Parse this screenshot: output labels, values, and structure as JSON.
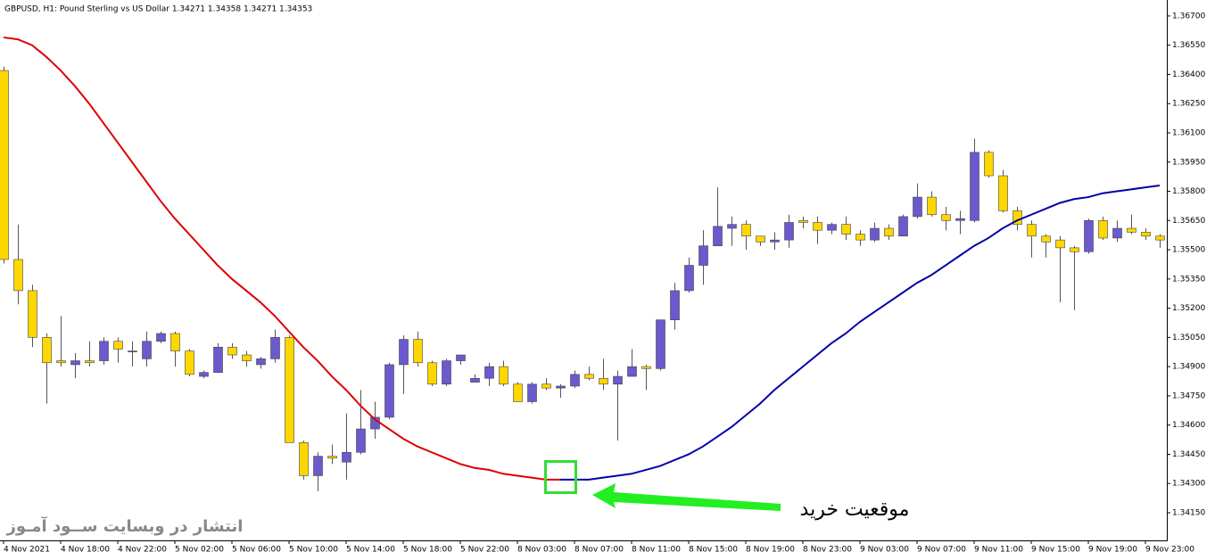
{
  "chart_data": {
    "type": "candlestick",
    "title": "GBPUSD, H1:  Pound Sterling vs US Dollar  1.34271 1.34358 1.34271 1.34353",
    "watermark": "انتشار در وبسایت  ســود آمـوز",
    "annotation": "موقعیت خرید",
    "up_color": "#6a5acd",
    "down_color": "#ffd700",
    "categories": [
      "4 Nov 2021",
      null,
      null,
      null,
      "4 Nov 18:00",
      null,
      null,
      null,
      "4 Nov 22:00",
      null,
      null,
      null,
      "5 Nov 02:00",
      null,
      null,
      null,
      "5 Nov 06:00",
      null,
      null,
      null,
      "5 Nov 10:00",
      null,
      null,
      null,
      "5 Nov 14:00",
      null,
      null,
      null,
      "5 Nov 18:00",
      null,
      null,
      null,
      "5 Nov 22:00",
      null,
      null,
      null,
      "8 Nov 03:00",
      null,
      null,
      null,
      "8 Nov 07:00",
      null,
      null,
      null,
      "8 Nov 11:00",
      null,
      null,
      null,
      "8 Nov 15:00",
      null,
      null,
      null,
      "8 Nov 19:00",
      null,
      null,
      null,
      "8 Nov 23:00",
      null,
      null,
      null,
      "9 Nov 03:00",
      null,
      null,
      null,
      "9 Nov 07:00",
      null,
      null,
      null,
      "9 Nov 11:00",
      null,
      null,
      null,
      "9 Nov 15:00",
      null,
      null,
      null,
      "9 Nov 19:00",
      null,
      null,
      null,
      "9 Nov 23:00",
      null
    ],
    "open": [
      1.3642,
      1.3545,
      1.3529,
      1.3505,
      1.3493,
      1.3491,
      1.3493,
      1.3493,
      1.3503,
      1.3498,
      1.3494,
      1.3503,
      1.3507,
      1.3498,
      1.3485,
      1.3487,
      1.35,
      1.3496,
      1.3491,
      1.3494,
      1.3505,
      1.3451,
      1.3434,
      1.3444,
      1.3441,
      1.3446,
      1.3458,
      1.3464,
      1.3491,
      1.3504,
      1.3492,
      1.3481,
      1.3493,
      1.3482,
      1.3484,
      1.349,
      1.3481,
      1.3472,
      1.3481,
      1.3479,
      1.348,
      1.3486,
      1.3484,
      1.3481,
      1.3485,
      1.349,
      1.3489,
      1.3514,
      1.3529,
      1.3542,
      1.3552,
      1.3561,
      1.3563,
      1.3557,
      1.3554,
      1.3555,
      1.3565,
      1.3564,
      1.356,
      1.3563,
      1.3558,
      1.3555,
      1.3561,
      1.3557,
      1.3567,
      1.3577,
      1.3568,
      1.3565,
      1.3565,
      1.36,
      1.3588,
      1.357,
      1.3563,
      1.3557,
      1.3555,
      1.3551,
      1.3549,
      1.3565,
      1.3556,
      1.3561,
      1.3559,
      1.3557
    ],
    "high": [
      1.3644,
      1.3563,
      1.3532,
      1.3507,
      1.3516,
      1.3497,
      1.3503,
      1.3505,
      1.3505,
      1.3503,
      1.3508,
      1.3508,
      1.3508,
      1.3499,
      1.3488,
      1.3502,
      1.3502,
      1.3498,
      1.3495,
      1.3509,
      1.3506,
      1.3452,
      1.3446,
      1.345,
      1.3466,
      1.3478,
      1.3472,
      1.3492,
      1.3506,
      1.3508,
      1.3493,
      1.3494,
      1.3496,
      1.3486,
      1.3492,
      1.3493,
      1.3482,
      1.3482,
      1.3484,
      1.3481,
      1.3488,
      1.349,
      1.3494,
      1.3488,
      1.3499,
      1.3491,
      1.3514,
      1.3533,
      1.3546,
      1.356,
      1.3582,
      1.3567,
      1.3565,
      1.3557,
      1.3559,
      1.3568,
      1.3567,
      1.3567,
      1.3564,
      1.3567,
      1.356,
      1.3564,
      1.3563,
      1.3568,
      1.3584,
      1.358,
      1.3572,
      1.357,
      1.3607,
      1.3601,
      1.3591,
      1.3572,
      1.3565,
      1.3558,
      1.3557,
      1.3552,
      1.3566,
      1.3567,
      1.3565,
      1.3568,
      1.3561,
      1.3558
    ],
    "low": [
      1.3543,
      1.3522,
      1.35,
      1.3471,
      1.349,
      1.3484,
      1.349,
      1.3491,
      1.3492,
      1.349,
      1.349,
      1.3502,
      1.349,
      1.3485,
      1.3484,
      1.3487,
      1.3494,
      1.349,
      1.3489,
      1.3492,
      1.3451,
      1.3432,
      1.3426,
      1.344,
      1.3432,
      1.3445,
      1.3453,
      1.3463,
      1.3476,
      1.349,
      1.348,
      1.348,
      1.3491,
      1.3482,
      1.348,
      1.348,
      1.3472,
      1.3471,
      1.3478,
      1.3474,
      1.3479,
      1.3483,
      1.3478,
      1.3452,
      1.3485,
      1.3478,
      1.3488,
      1.3509,
      1.3528,
      1.3532,
      1.3552,
      1.3552,
      1.355,
      1.3552,
      1.355,
      1.3551,
      1.3561,
      1.3553,
      1.3558,
      1.3555,
      1.3552,
      1.3554,
      1.3555,
      1.3557,
      1.3566,
      1.3567,
      1.356,
      1.3558,
      1.3564,
      1.3587,
      1.3569,
      1.356,
      1.3546,
      1.3546,
      1.3523,
      1.3519,
      1.3548,
      1.3555,
      1.3554,
      1.3558,
      1.3555,
      1.3551
    ],
    "close": [
      1.3545,
      1.3529,
      1.3505,
      1.3492,
      1.3492,
      1.3493,
      1.3492,
      1.3503,
      1.3499,
      1.3498,
      1.3503,
      1.3507,
      1.3498,
      1.3486,
      1.3487,
      1.35,
      1.3496,
      1.3493,
      1.3494,
      1.3505,
      1.3451,
      1.3434,
      1.3444,
      1.3443,
      1.3446,
      1.3458,
      1.3464,
      1.3491,
      1.3504,
      1.3492,
      1.3481,
      1.3493,
      1.3496,
      1.3484,
      1.349,
      1.3481,
      1.3472,
      1.3481,
      1.3479,
      1.348,
      1.3486,
      1.3484,
      1.3481,
      1.3485,
      1.349,
      1.3489,
      1.3514,
      1.3529,
      1.3542,
      1.3552,
      1.3562,
      1.3563,
      1.3557,
      1.3554,
      1.3555,
      1.3564,
      1.3564,
      1.356,
      1.3563,
      1.3558,
      1.3555,
      1.3561,
      1.3557,
      1.3567,
      1.3577,
      1.3568,
      1.3565,
      1.3566,
      1.36,
      1.3588,
      1.357,
      1.3563,
      1.3557,
      1.3554,
      1.3551,
      1.3549,
      1.3565,
      1.3556,
      1.3561,
      1.3559,
      1.3557,
      1.3555
    ],
    "series": [
      {
        "color": "#dd0000",
        "values": [
          1.3659,
          1.3658,
          1.3655,
          1.3649,
          1.3642,
          1.3634,
          1.3625,
          1.3615,
          1.3605,
          1.3595,
          1.3585,
          1.3575,
          1.3566,
          1.3558,
          1.355,
          1.3542,
          1.3535,
          1.3529,
          1.3523,
          1.3516,
          1.3508,
          1.35,
          1.3493,
          1.3485,
          1.3478,
          1.347,
          1.3463,
          1.3458,
          1.3453,
          1.3449,
          1.3446,
          1.3443,
          1.344,
          1.3438,
          1.3437,
          1.3435,
          1.3434,
          1.3433,
          1.3432,
          1.3432,
          null,
          null,
          null,
          null,
          null,
          null,
          null,
          null,
          null,
          null,
          null,
          null,
          null,
          null,
          null,
          null,
          null,
          null,
          null,
          null,
          null,
          null,
          null,
          null,
          null,
          null,
          null,
          null,
          null,
          null,
          null,
          null,
          null,
          null,
          null,
          null,
          null,
          null,
          null,
          null,
          null,
          null
        ]
      },
      {
        "color": "#0000aa",
        "values": [
          null,
          null,
          null,
          null,
          null,
          null,
          null,
          null,
          null,
          null,
          null,
          null,
          null,
          null,
          null,
          null,
          null,
          null,
          null,
          null,
          null,
          null,
          null,
          null,
          null,
          null,
          null,
          null,
          null,
          null,
          null,
          null,
          null,
          null,
          null,
          null,
          null,
          null,
          null,
          1.3432,
          1.3432,
          1.3432,
          1.3433,
          1.3434,
          1.3435,
          1.3437,
          1.3439,
          1.3442,
          1.3445,
          1.3449,
          1.3454,
          1.3459,
          1.3465,
          1.3471,
          1.3478,
          1.3484,
          1.349,
          1.3496,
          1.3502,
          1.3507,
          1.3513,
          1.3518,
          1.3523,
          1.3528,
          1.3533,
          1.3537,
          1.3542,
          1.3547,
          1.3552,
          1.3556,
          1.3561,
          1.3565,
          1.3568,
          1.3571,
          1.3574,
          1.3576,
          1.3577,
          1.3579,
          1.358,
          1.3581,
          1.3582,
          1.3583
        ]
      }
    ],
    "ylim": [
      1.34008,
      1.36782
    ],
    "yticks": [
      {
        "value": 1.367,
        "label": "1.36700"
      },
      {
        "value": 1.3655,
        "label": "1.36550"
      },
      {
        "value": 1.364,
        "label": "1.36400"
      },
      {
        "value": 1.3625,
        "label": "1.36250"
      },
      {
        "value": 1.361,
        "label": "1.36100"
      },
      {
        "value": 1.3595,
        "label": "1.35950"
      },
      {
        "value": 1.358,
        "label": "1.35800"
      },
      {
        "value": 1.3565,
        "label": "1.35650"
      },
      {
        "value": 1.355,
        "label": "1.35500"
      },
      {
        "value": 1.3535,
        "label": "1.35350"
      },
      {
        "value": 1.352,
        "label": "1.35200"
      },
      {
        "value": 1.3505,
        "label": "1.35050"
      },
      {
        "value": 1.349,
        "label": "1.34900"
      },
      {
        "value": 1.3475,
        "label": "1.34750"
      },
      {
        "value": 1.346,
        "label": "1.34600"
      },
      {
        "value": 1.3445,
        "label": "1.34450"
      },
      {
        "value": 1.343,
        "label": "1.34300"
      },
      {
        "value": 1.3415,
        "label": "1.34150"
      }
    ]
  }
}
